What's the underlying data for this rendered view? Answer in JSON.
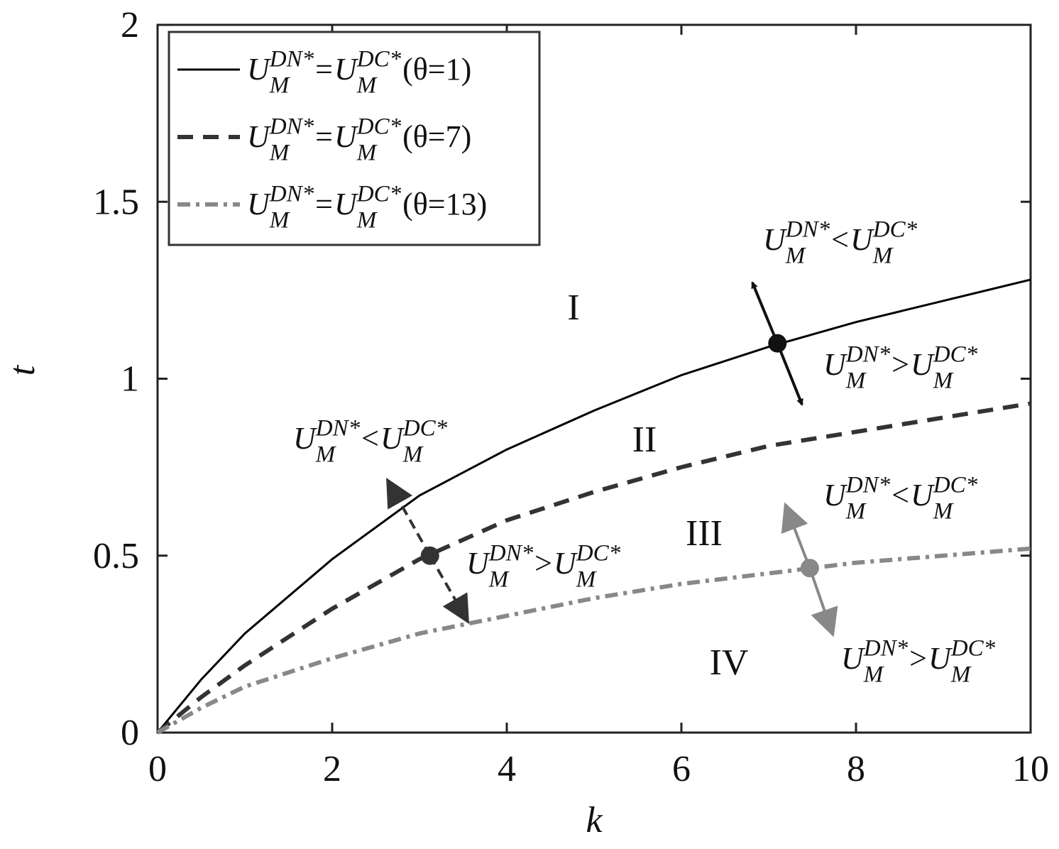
{
  "chart_data": {
    "type": "line",
    "xlabel": "k",
    "ylabel": "t",
    "xlim": [
      0,
      10
    ],
    "ylim": [
      0,
      2
    ],
    "xticks": [
      0,
      2,
      4,
      6,
      8,
      10
    ],
    "yticks": [
      0,
      0.5,
      1,
      1.5,
      2
    ],
    "x": [
      0,
      0.5,
      1,
      2,
      3,
      4,
      5,
      6,
      7,
      8,
      9,
      10
    ],
    "series": [
      {
        "name": [
          "U",
          "M",
          "DN*",
          "=",
          "U",
          "M",
          "DC*",
          "(θ=1)"
        ],
        "color": "#000000",
        "dash": "solid",
        "values": [
          0,
          0.15,
          0.28,
          0.49,
          0.67,
          0.8,
          0.91,
          1.01,
          1.09,
          1.16,
          1.22,
          1.28
        ]
      },
      {
        "name": [
          "U",
          "M",
          "DN*",
          "=",
          "U",
          "M",
          "DC*",
          "(θ=7)"
        ],
        "color": "#333333",
        "dash": "dashed",
        "values": [
          0,
          0.1,
          0.19,
          0.35,
          0.49,
          0.6,
          0.68,
          0.75,
          0.81,
          0.85,
          0.89,
          0.93
        ]
      },
      {
        "name": [
          "U",
          "M",
          "DN*",
          "=",
          "U",
          "M",
          "DC*",
          "(θ=13)"
        ],
        "color": "#888888",
        "dash": "dashdot",
        "values": [
          0,
          0.07,
          0.13,
          0.21,
          0.28,
          0.33,
          0.38,
          0.42,
          0.45,
          0.48,
          0.5,
          0.52
        ]
      }
    ],
    "points": [
      {
        "x": 7.1,
        "y": 1.1,
        "color": "#111111"
      },
      {
        "x": 3.12,
        "y": 0.5,
        "color": "#333333"
      },
      {
        "x": 7.47,
        "y": 0.465,
        "color": "#888888"
      }
    ],
    "regions": [
      "I",
      "II",
      "III",
      "IV"
    ],
    "annotations": [
      [
        "U",
        "M",
        "DN*",
        "<",
        "U",
        "M",
        "DC*"
      ],
      [
        "U",
        "M",
        "DN*",
        ">",
        "U",
        "M",
        "DC*"
      ],
      [
        "U",
        "M",
        "DN*",
        "<",
        "U",
        "M",
        "DC*"
      ],
      [
        "U",
        "M",
        "DN*",
        ">",
        "U",
        "M",
        "DC*"
      ],
      [
        "U",
        "M",
        "DN*",
        "<",
        "U",
        "M",
        "DC*"
      ],
      [
        "U",
        "M",
        "DN*",
        ">",
        "U",
        "M",
        "DC*"
      ]
    ],
    "legend": "upper left"
  }
}
